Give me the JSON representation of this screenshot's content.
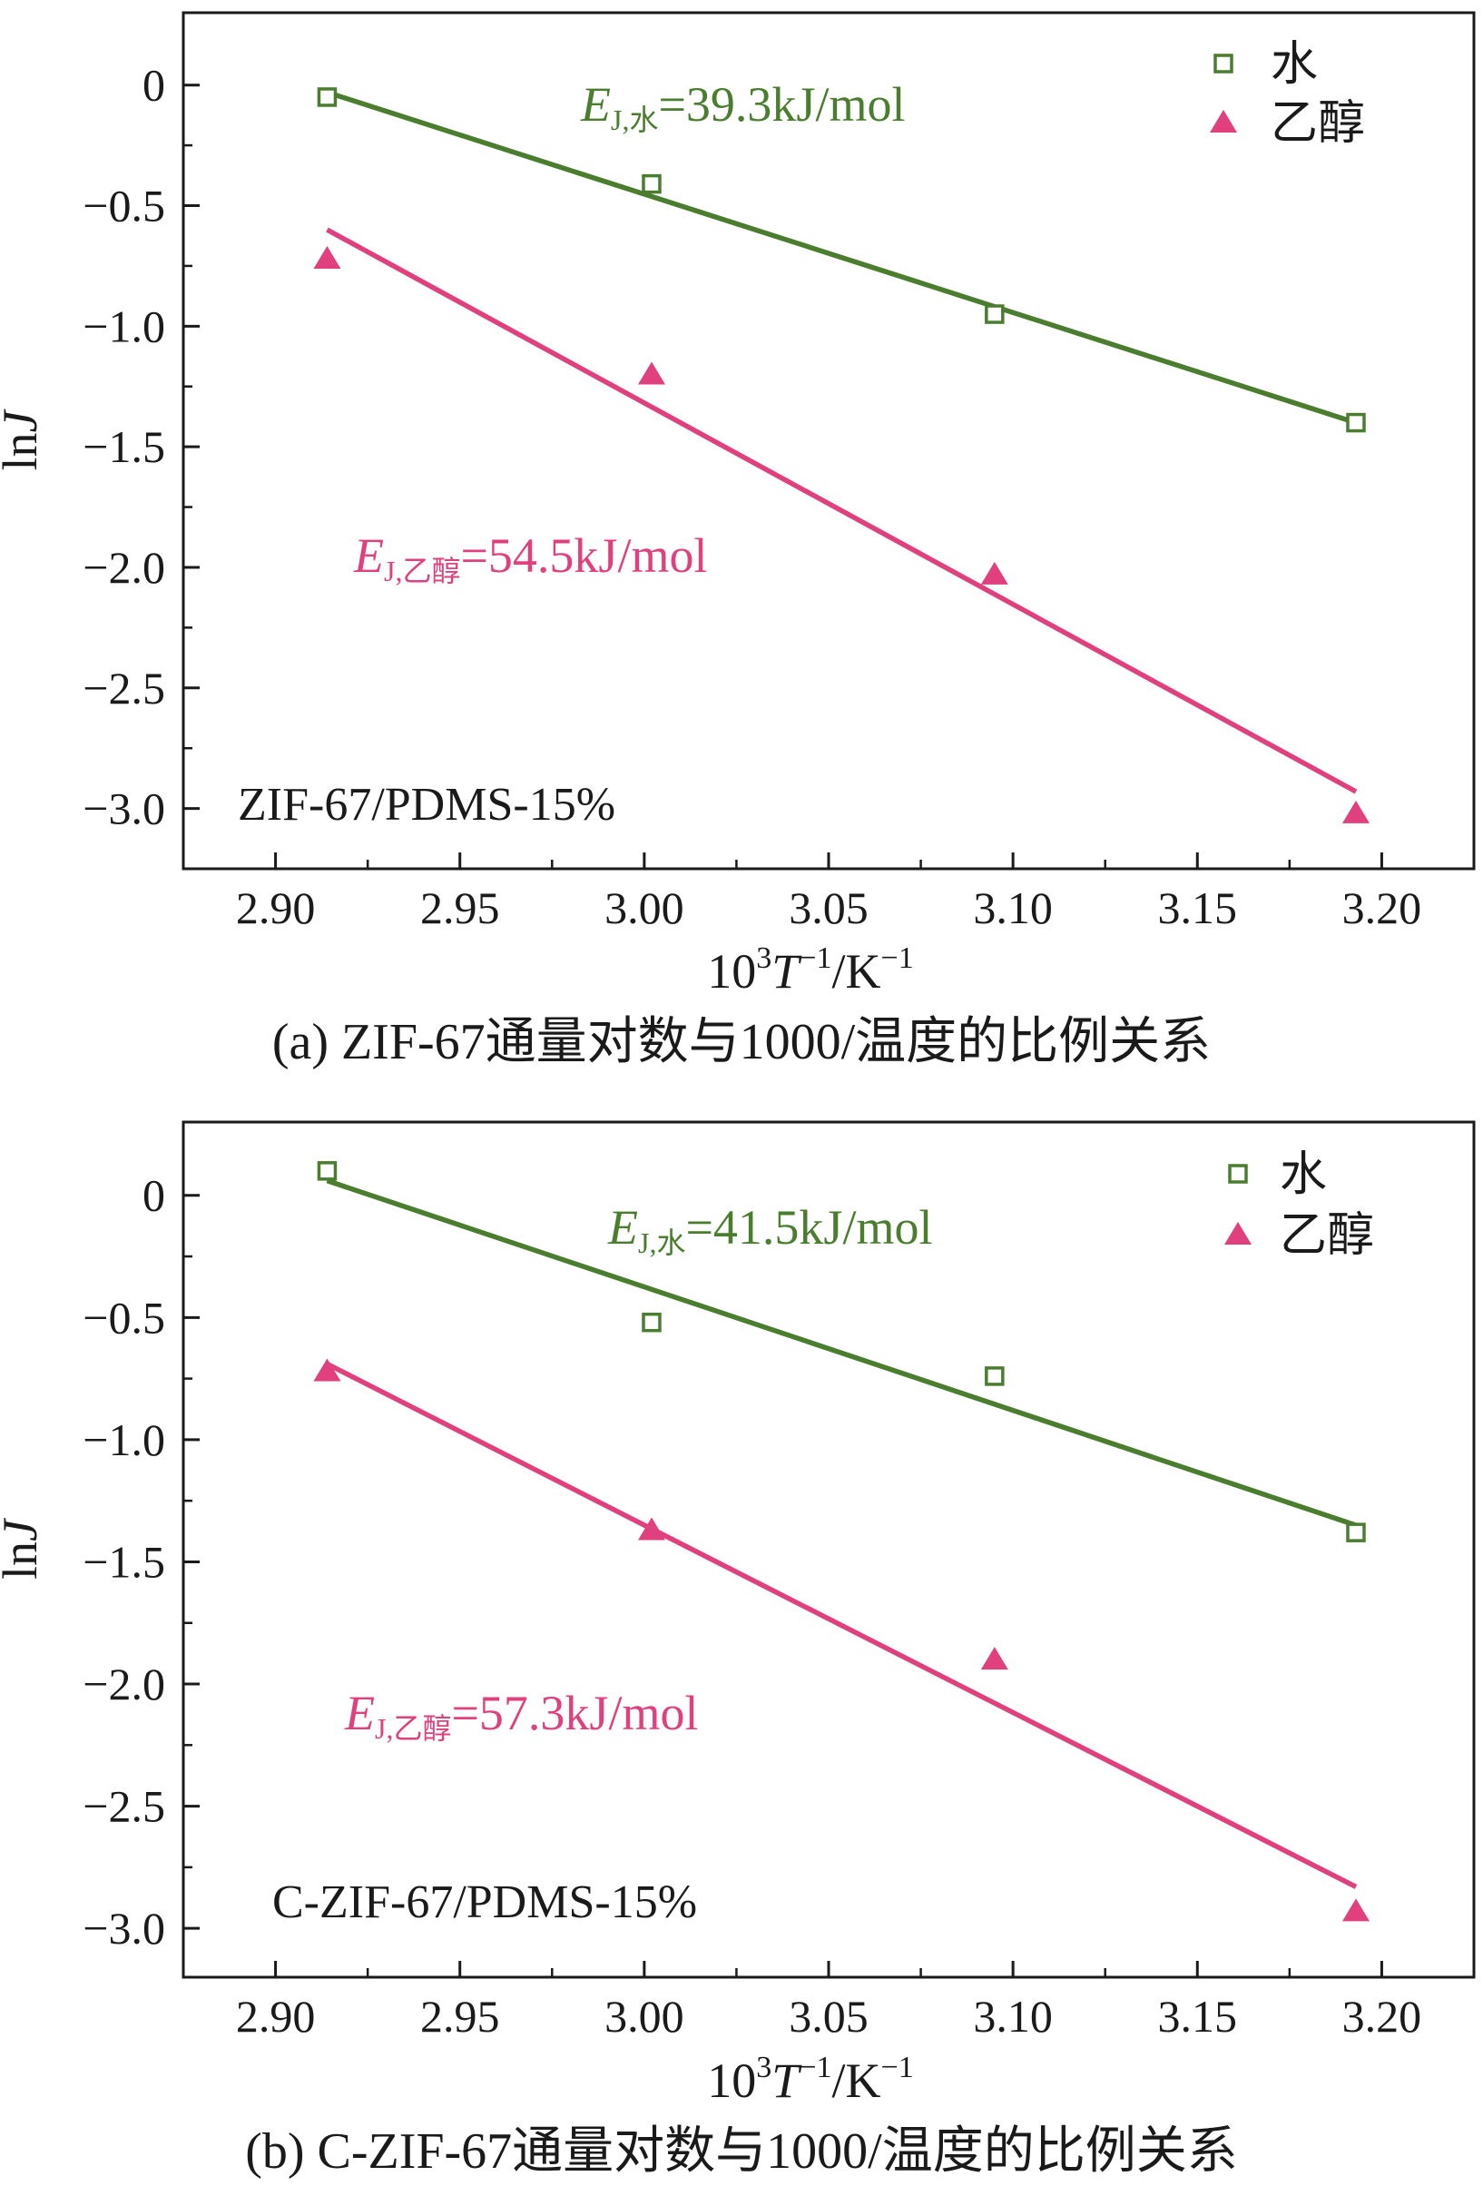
{
  "colors": {
    "water": "#4a7d2e",
    "ethanol": "#e0407e",
    "axis": "#1a1a1a"
  },
  "chart_data": [
    {
      "type": "scatter",
      "caption": "(a) ZIF-67通量对数与1000/温度的比例关系",
      "annotation": "ZIF-67/PDMS-15%",
      "xlabel": {
        "base": "10",
        "sup1": "3",
        "var": "T",
        "sup2": "−1",
        "unit": "/K",
        "sup3": "−1"
      },
      "ylabel": {
        "pre": "ln",
        "var": "J"
      },
      "xlim": [
        2.875,
        3.225
      ],
      "ylim": [
        -3.25,
        0.3
      ],
      "xticks": [
        2.9,
        2.95,
        3.0,
        3.05,
        3.1,
        3.15,
        3.2
      ],
      "xtick_labels": [
        "2.90",
        "2.95",
        "3.00",
        "3.05",
        "3.10",
        "3.15",
        "3.20"
      ],
      "yticks": [
        0,
        -0.5,
        -1.0,
        -1.5,
        -2.0,
        -2.5,
        -3.0
      ],
      "ytick_labels": [
        "0",
        "−0.5",
        "−1.0",
        "−1.5",
        "−2.0",
        "−2.5",
        "−3.0"
      ],
      "legend_position": "top-right",
      "series": [
        {
          "name": "水",
          "marker": "open-square",
          "color_key": "water",
          "x": [
            2.914,
            3.002,
            3.095,
            3.193
          ],
          "y": [
            -0.05,
            -0.41,
            -0.95,
            -1.4
          ],
          "fit": {
            "x": [
              2.914,
              3.193
            ],
            "y": [
              -0.03,
              -1.4
            ]
          },
          "energy_label": {
            "E": "E",
            "sub": "J,水",
            "value": "=39.3kJ/mol"
          }
        },
        {
          "name": "乙醇",
          "marker": "filled-triangle",
          "color_key": "ethanol",
          "x": [
            2.914,
            3.002,
            3.095,
            3.193
          ],
          "y": [
            -0.72,
            -1.2,
            -2.03,
            -3.02
          ],
          "fit": {
            "x": [
              2.914,
              3.193
            ],
            "y": [
              -0.6,
              -2.93
            ]
          },
          "energy_label": {
            "E": "E",
            "sub": "J,乙醇",
            "value": "=54.5kJ/mol"
          }
        }
      ]
    },
    {
      "type": "scatter",
      "caption": "(b) C-ZIF-67通量对数与1000/温度的比例关系",
      "annotation": "C-ZIF-67/PDMS-15%",
      "xlabel": {
        "base": "10",
        "sup1": "3",
        "var": "T",
        "sup2": "−1",
        "unit": "/K",
        "sup3": "−1"
      },
      "ylabel": {
        "pre": "ln",
        "var": "J"
      },
      "xlim": [
        2.875,
        3.225
      ],
      "ylim": [
        -3.2,
        0.3
      ],
      "xticks": [
        2.9,
        2.95,
        3.0,
        3.05,
        3.1,
        3.15,
        3.2
      ],
      "xtick_labels": [
        "2.90",
        "2.95",
        "3.00",
        "3.05",
        "3.10",
        "3.15",
        "3.20"
      ],
      "yticks": [
        0,
        -0.5,
        -1.0,
        -1.5,
        -2.0,
        -2.5,
        -3.0
      ],
      "ytick_labels": [
        "0",
        "−0.5",
        "−1.0",
        "−1.5",
        "−2.0",
        "−2.5",
        "−3.0"
      ],
      "legend_position": "top-right",
      "series": [
        {
          "name": "水",
          "marker": "open-square",
          "color_key": "water",
          "x": [
            2.914,
            3.002,
            3.095,
            3.193
          ],
          "y": [
            0.1,
            -0.52,
            -0.74,
            -1.38
          ],
          "fit": {
            "x": [
              2.914,
              3.193
            ],
            "y": [
              0.06,
              -1.35
            ]
          },
          "energy_label": {
            "E": "E",
            "sub": "J,水",
            "value": "=41.5kJ/mol"
          }
        },
        {
          "name": "乙醇",
          "marker": "filled-triangle",
          "color_key": "ethanol",
          "x": [
            2.914,
            3.002,
            3.095,
            3.193
          ],
          "y": [
            -0.72,
            -1.37,
            -1.9,
            -2.93
          ],
          "fit": {
            "x": [
              2.914,
              3.193
            ],
            "y": [
              -0.69,
              -2.83
            ]
          },
          "energy_label": {
            "E": "E",
            "sub": "J,乙醇",
            "value": "=57.3kJ/mol"
          }
        }
      ]
    }
  ]
}
